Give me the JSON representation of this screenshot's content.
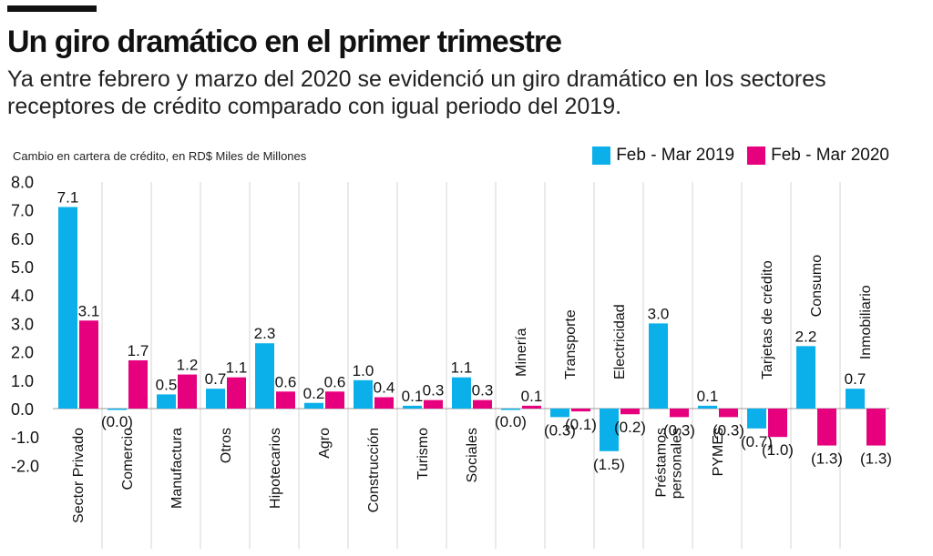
{
  "header": {
    "title": "Un giro dramático en el primer trimestre",
    "subtitle": "Ya entre febrero y marzo del 2020 se evidenció un giro dramático en los sectores receptores de crédito comparado con igual periodo del 2019.",
    "note": "Cambio en cartera de crédito, en RD$ Miles de Millones"
  },
  "legend": [
    {
      "label": "Feb - Mar 2019",
      "color": "#0BB0EA"
    },
    {
      "label": "Feb - Mar 2020",
      "color": "#E6007E"
    }
  ],
  "chart_data": {
    "type": "bar",
    "title": "Un giro dramático en el primer trimestre",
    "ylabel": "Cambio en cartera de crédito, en RD$ Miles de Millones",
    "xlabel": "",
    "ylim": [
      -2.0,
      8.0
    ],
    "yticks": [
      "8.0",
      "7.0",
      "6.0",
      "5.0",
      "4.0",
      "3.0",
      "2.0",
      "1.0",
      "0.0",
      "-1.0",
      "-2.0"
    ],
    "ytick_values": [
      8,
      7,
      6,
      5,
      4,
      3,
      2,
      1,
      0,
      -1,
      -2
    ],
    "categories": [
      "Sector Privado",
      "Comercio",
      "Manufactura",
      "Otros",
      "Hipotecarios",
      "Agro",
      "Construcción",
      "Turismo",
      "Sociales",
      "Minería",
      "Transporte",
      "Electricidad",
      "Préstamos personales",
      "PYMEs",
      "Tarjetas de crédito",
      "Consumo",
      "Inmobiliario"
    ],
    "series": [
      {
        "name": "Feb - Mar 2019",
        "color": "#0BB0EA",
        "values": [
          7.1,
          0.0,
          0.5,
          0.7,
          2.3,
          0.2,
          1.0,
          0.1,
          1.1,
          0.0,
          -0.3,
          -1.5,
          3.0,
          0.1,
          -0.7,
          2.2,
          0.7
        ],
        "labels": [
          "7.1",
          "(0.0)",
          "0.5",
          "0.7",
          "2.3",
          "0.2",
          "1.0",
          "0.1",
          "1.1",
          "(0.0)",
          "(0.3)",
          "(1.5)",
          "3.0",
          "0.1",
          "(0.7)",
          "2.2",
          "0.7"
        ]
      },
      {
        "name": "Feb - Mar 2020",
        "color": "#E6007E",
        "values": [
          3.1,
          1.7,
          1.2,
          1.1,
          0.6,
          0.6,
          0.4,
          0.3,
          0.3,
          0.1,
          -0.1,
          -0.2,
          -0.3,
          -0.3,
          -1.0,
          -1.3,
          -1.3
        ],
        "labels": [
          "3.1",
          "1.7",
          "1.2",
          "1.1",
          "0.6",
          "0.6",
          "0.4",
          "0.3",
          "0.3",
          "0.1",
          "(0.1)",
          "(0.2)",
          "(0.3)",
          "(0.3)",
          "(1.0)",
          "(1.3)",
          "(1.3)"
        ]
      }
    ],
    "category_label_placement": [
      "bottom",
      "bottom",
      "bottom",
      "bottom",
      "bottom",
      "bottom",
      "bottom",
      "bottom",
      "bottom",
      "top",
      "top",
      "top",
      "bottom",
      "bottom",
      "top",
      "top",
      "top"
    ],
    "category_label_lines": [
      [
        "Sector Privado"
      ],
      [
        "Comercio"
      ],
      [
        "Manufactura"
      ],
      [
        "Otros"
      ],
      [
        "Hipotecarios"
      ],
      [
        "Agro"
      ],
      [
        "Construcción"
      ],
      [
        "Turismo"
      ],
      [
        "Sociales"
      ],
      [
        "Minería"
      ],
      [
        "Transporte"
      ],
      [
        "Electricidad"
      ],
      [
        "Préstamos",
        "personales"
      ],
      [
        "PYMEs"
      ],
      [
        "Tarjetas de crédito"
      ],
      [
        "Consumo"
      ],
      [
        "Inmobiliario"
      ]
    ]
  }
}
